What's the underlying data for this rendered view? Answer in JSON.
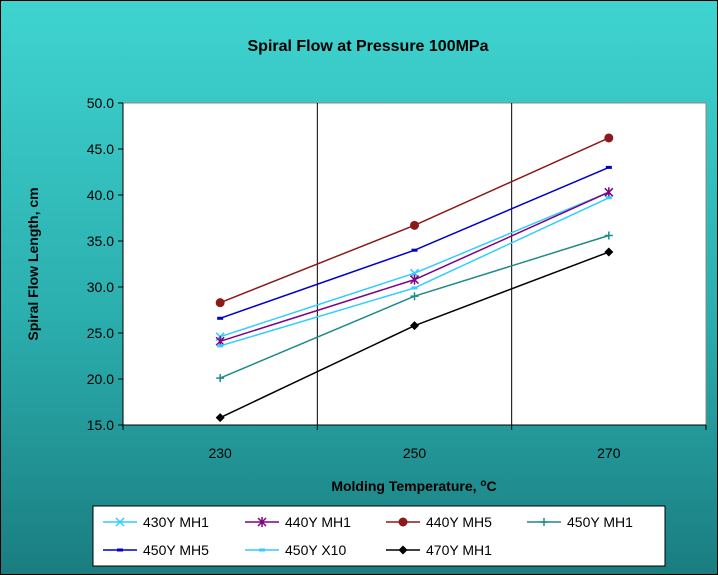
{
  "chart_data": {
    "type": "line",
    "title": "Spiral Flow at Pressure 100MPa",
    "xlabel": "Molding Temperature, ",
    "xlabel_unit": "oC",
    "ylabel": "Spiral Flow Length, cm",
    "categories": [
      "230",
      "250",
      "270"
    ],
    "ylim": [
      15.0,
      50.0
    ],
    "yticks": [
      "15.0",
      "20.0",
      "25.0",
      "30.0",
      "35.0",
      "40.0",
      "45.0",
      "50.0"
    ],
    "grid": "vertical",
    "legend_position": "bottom",
    "series": [
      {
        "name": "430Y MH1",
        "values": [
          24.6,
          31.5,
          40.3
        ],
        "color": "#33CCFF",
        "marker": "x"
      },
      {
        "name": "440Y MH1",
        "values": [
          24.1,
          30.8,
          40.3
        ],
        "color": "#800080",
        "marker": "star"
      },
      {
        "name": "440Y MH5",
        "values": [
          28.3,
          36.7,
          46.2
        ],
        "color": "#8B1A1A",
        "marker": "circle"
      },
      {
        "name": "450Y MH1",
        "values": [
          20.1,
          29.0,
          35.6
        ],
        "color": "#1F8A8A",
        "marker": "plus"
      },
      {
        "name": "450Y MH5",
        "values": [
          26.6,
          34.0,
          43.0
        ],
        "color": "#0000CC",
        "marker": "dash"
      },
      {
        "name": "450Y X10",
        "values": [
          23.6,
          29.9,
          39.7
        ],
        "color": "#33CCFF",
        "marker": "dash"
      },
      {
        "name": "470Y MH1",
        "values": [
          15.8,
          25.8,
          33.8
        ],
        "color": "#000000",
        "marker": "diamond"
      }
    ]
  }
}
